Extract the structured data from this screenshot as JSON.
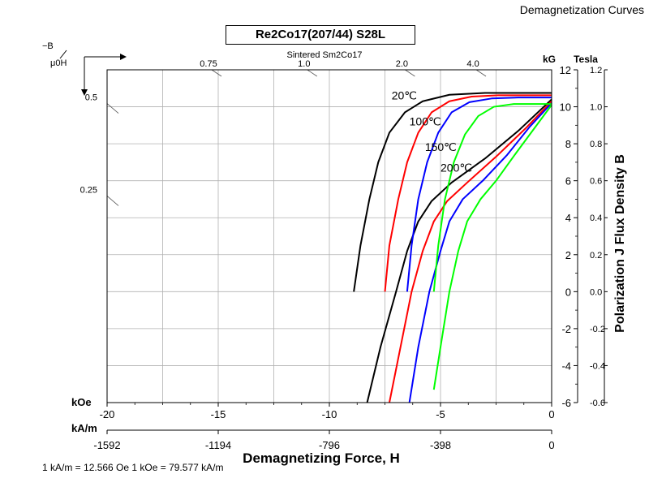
{
  "header": {
    "corner_title": "Demagnetization Curves",
    "title": "Re2Co17(207/44) S28L",
    "footnote": "1 kA/m = 12.566 Oe 1 kOe = 79.577 kA/m"
  },
  "chart_data": {
    "type": "line",
    "title": "Re2Co17(207/44) S28L",
    "subtitle": "Sintered Sm2Co17",
    "xlabel": "Demagnetizing Force, H",
    "ylabel": "Polarization J Flux Density B",
    "x_unit_primary": "kOe",
    "x_unit_secondary": "kA/m",
    "y_unit_left": "kG",
    "y_unit_right": "Tesla",
    "corner_label_top": "−B",
    "corner_label_bottom": "μ0H",
    "xlim": [
      -20,
      0
    ],
    "ylim": [
      -6,
      12
    ],
    "x_ticks_koe": [
      "-20",
      "-15",
      "-10",
      "-5",
      "0"
    ],
    "x_ticks_kam": [
      "-1592",
      "-1194",
      "-796",
      "-398",
      "0"
    ],
    "y_ticks_kg": [
      "-6",
      "-4",
      "-2",
      "0",
      "2",
      "4",
      "6",
      "8",
      "10",
      "12"
    ],
    "y_ticks_tesla": [
      "-0.6",
      "-0.4",
      "-0.2",
      "0.0",
      "0.2",
      "0.4",
      "0.6",
      "0.8",
      "1.0",
      "1.2"
    ],
    "permeance_top": [
      {
        "label": "0.75",
        "x": -15
      },
      {
        "label": "1.0",
        "x": -10.7
      },
      {
        "label": "2.0",
        "x": -6.3
      },
      {
        "label": "4.0",
        "x": -3.1
      }
    ],
    "permeance_left": [
      {
        "label": "0.5",
        "y": 10
      },
      {
        "label": "0.25",
        "y": 5
      }
    ],
    "grid": true,
    "series": [
      {
        "name": "20℃",
        "color": "#000000",
        "J": [
          [
            -8.9,
            0
          ],
          [
            -8.6,
            2.5
          ],
          [
            -8.2,
            5
          ],
          [
            -7.8,
            7
          ],
          [
            -7.3,
            8.6
          ],
          [
            -6.6,
            9.7
          ],
          [
            -5.8,
            10.3
          ],
          [
            -4.6,
            10.65
          ],
          [
            -3.0,
            10.75
          ],
          [
            0,
            10.75
          ]
        ],
        "B": [
          [
            -8.3,
            -6
          ],
          [
            -7.7,
            -3
          ],
          [
            -7.0,
            0
          ],
          [
            -6.5,
            2.2
          ],
          [
            -6.0,
            3.8
          ],
          [
            -5.4,
            4.9
          ],
          [
            -4.5,
            5.9
          ],
          [
            -3.0,
            7.2
          ],
          [
            -1.5,
            8.7
          ],
          [
            0,
            10.4
          ]
        ]
      },
      {
        "name": "100℃",
        "color": "#ff0000",
        "J": [
          [
            -7.5,
            0
          ],
          [
            -7.3,
            2.5
          ],
          [
            -6.9,
            5
          ],
          [
            -6.5,
            7
          ],
          [
            -6.0,
            8.6
          ],
          [
            -5.4,
            9.7
          ],
          [
            -4.6,
            10.3
          ],
          [
            -3.6,
            10.55
          ],
          [
            -2.4,
            10.62
          ],
          [
            0,
            10.62
          ]
        ],
        "B": [
          [
            -7.3,
            -6
          ],
          [
            -6.8,
            -3
          ],
          [
            -6.3,
            0
          ],
          [
            -5.8,
            2.2
          ],
          [
            -5.3,
            3.8
          ],
          [
            -4.7,
            4.9
          ],
          [
            -3.8,
            5.9
          ],
          [
            -2.5,
            7.3
          ],
          [
            -1.2,
            8.8
          ],
          [
            0,
            10.3
          ]
        ]
      },
      {
        "name": "150℃",
        "color": "#0000ff",
        "J": [
          [
            -6.5,
            0
          ],
          [
            -6.3,
            2.5
          ],
          [
            -6.0,
            5
          ],
          [
            -5.6,
            7
          ],
          [
            -5.1,
            8.6
          ],
          [
            -4.5,
            9.7
          ],
          [
            -3.7,
            10.25
          ],
          [
            -2.7,
            10.45
          ],
          [
            -1.5,
            10.5
          ],
          [
            0,
            10.5
          ]
        ],
        "B": [
          [
            -6.4,
            -6
          ],
          [
            -6.0,
            -3
          ],
          [
            -5.5,
            0
          ],
          [
            -5.0,
            2.2
          ],
          [
            -4.6,
            3.8
          ],
          [
            -4.0,
            5.0
          ],
          [
            -3.1,
            6.0
          ],
          [
            -2.0,
            7.4
          ],
          [
            -1.0,
            8.9
          ],
          [
            0,
            10.2
          ]
        ]
      },
      {
        "name": "200℃",
        "color": "#00ff00",
        "J": [
          [
            -5.3,
            0
          ],
          [
            -5.1,
            2.5
          ],
          [
            -4.8,
            5
          ],
          [
            -4.4,
            7
          ],
          [
            -3.9,
            8.5
          ],
          [
            -3.3,
            9.5
          ],
          [
            -2.6,
            10.0
          ],
          [
            -1.7,
            10.15
          ],
          [
            -0.8,
            10.15
          ],
          [
            0,
            10.15
          ]
        ],
        "B": [
          [
            -5.3,
            -5.3
          ],
          [
            -5.0,
            -3
          ],
          [
            -4.6,
            0
          ],
          [
            -4.2,
            2.2
          ],
          [
            -3.8,
            3.8
          ],
          [
            -3.2,
            5.0
          ],
          [
            -2.5,
            6.0
          ],
          [
            -1.6,
            7.5
          ],
          [
            -0.8,
            8.8
          ],
          [
            0,
            10.1
          ]
        ]
      }
    ],
    "series_label_positions": [
      {
        "name": "20℃",
        "x": -7.2,
        "y": 10.4
      },
      {
        "name": "100℃",
        "x": -6.4,
        "y": 9.0
      },
      {
        "name": "150℃",
        "x": -5.7,
        "y": 7.6
      },
      {
        "name": "200℃",
        "x": -5.0,
        "y": 6.5
      }
    ]
  }
}
